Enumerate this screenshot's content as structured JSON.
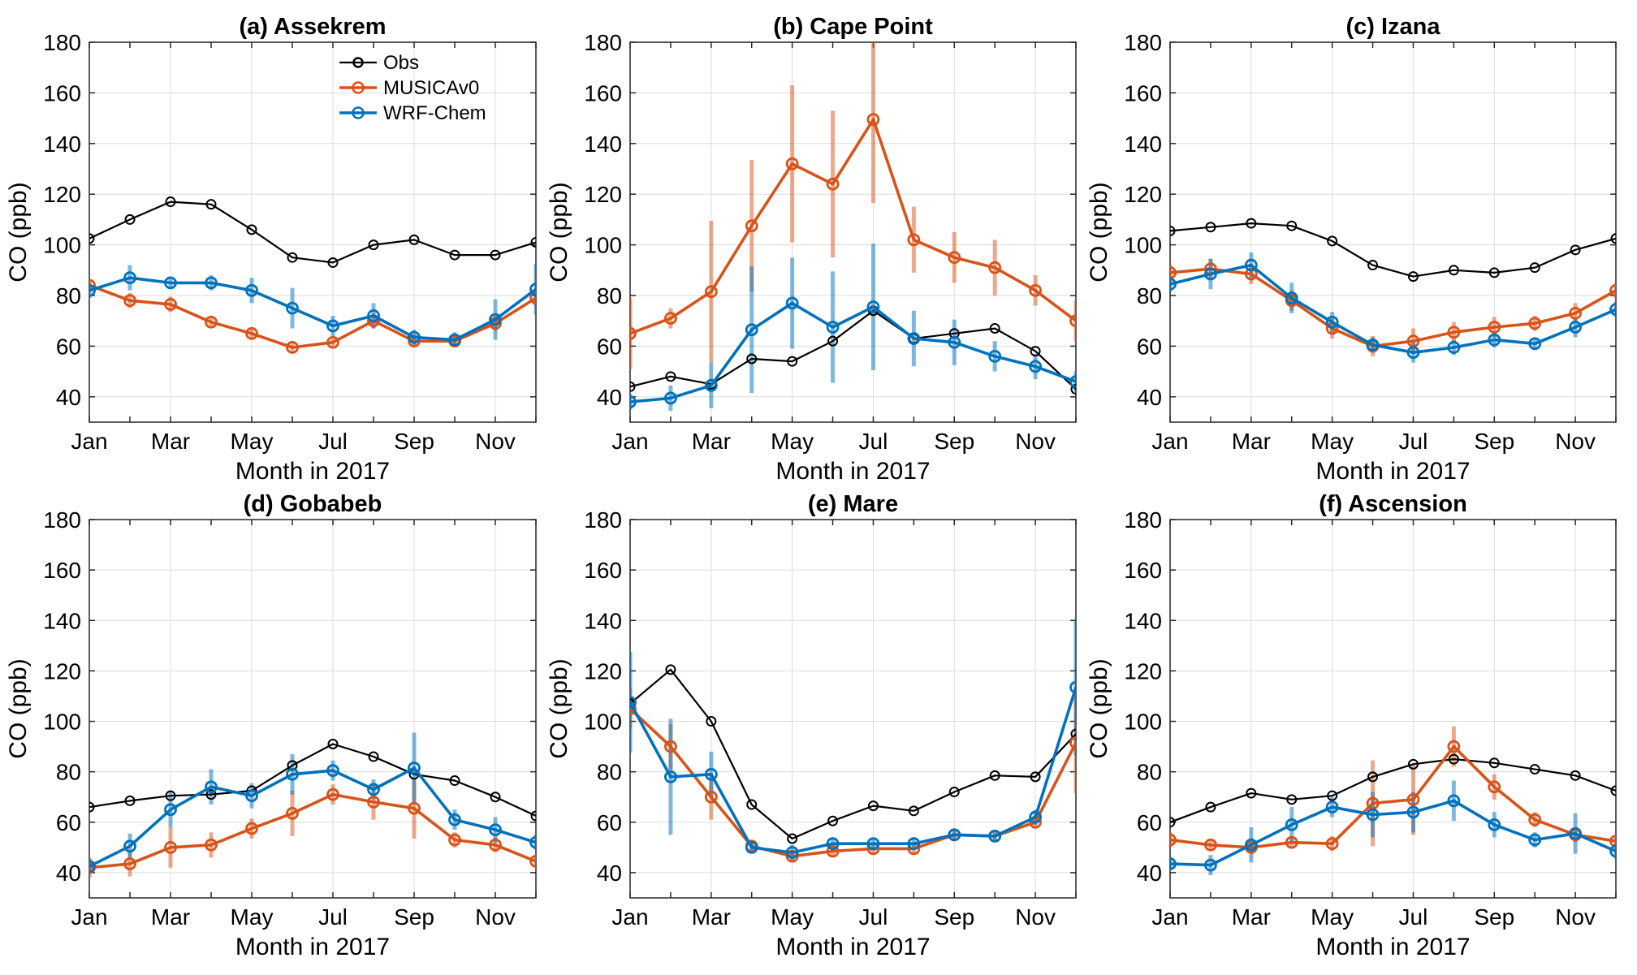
{
  "figure": {
    "xlabel": "Month in 2017",
    "ylabel": "CO (ppb)",
    "legend": [
      "Obs",
      "MUSICAv0",
      "WRF-Chem"
    ],
    "colors": {
      "obs": "#000000",
      "musica": "#d95319",
      "wrf": "#0072bd",
      "grid": "#dcdcdc"
    }
  },
  "chart_data": [
    {
      "type": "line",
      "title": "(a) Assekrem",
      "xlabel": "Month in 2017",
      "ylabel": "CO (ppb)",
      "ylim": [
        30,
        180
      ],
      "yticks": [
        40,
        60,
        80,
        100,
        120,
        140,
        160,
        180
      ],
      "xticks": [
        "Jan",
        "Mar",
        "May",
        "Jul",
        "Sep",
        "Nov"
      ],
      "legend": "top-center",
      "series": [
        {
          "name": "Obs",
          "values": [
            102.5,
            110,
            117,
            116,
            106,
            95,
            93,
            100,
            102,
            96,
            96,
            101
          ],
          "err": [
            0,
            0,
            0,
            0,
            0,
            0,
            0,
            0,
            0,
            0,
            0,
            0
          ]
        },
        {
          "name": "MUSICAv0",
          "values": [
            84,
            78,
            76.5,
            69.5,
            65,
            59.5,
            61.5,
            70,
            62,
            62,
            69,
            79
          ],
          "err": [
            2,
            3,
            3,
            2,
            2,
            2,
            2,
            3,
            2,
            2,
            3,
            3
          ]
        },
        {
          "name": "WRF-Chem",
          "values": [
            82,
            87,
            85,
            85,
            82,
            75,
            68,
            72,
            63.5,
            62.5,
            70.5,
            82.5
          ],
          "err": [
            3,
            5,
            2,
            3,
            5,
            8,
            4,
            5,
            3,
            3,
            8,
            10
          ]
        }
      ]
    },
    {
      "type": "line",
      "title": "(b) Cape Point",
      "xlabel": "Month in 2017",
      "ylabel": "CO (ppb)",
      "ylim": [
        30,
        180
      ],
      "yticks": [
        40,
        60,
        80,
        100,
        120,
        140,
        160,
        180
      ],
      "xticks": [
        "Jan",
        "Mar",
        "May",
        "Jul",
        "Sep",
        "Nov"
      ],
      "series": [
        {
          "name": "Obs",
          "values": [
            44,
            48,
            45,
            55,
            54,
            62,
            74,
            63,
            65,
            67,
            58,
            43
          ],
          "err": [
            0,
            0,
            0,
            0,
            0,
            0,
            0,
            0,
            0,
            0,
            0,
            0
          ]
        },
        {
          "name": "MUSICAv0",
          "values": [
            65,
            71,
            81.5,
            107.5,
            132,
            124,
            149.5,
            102,
            95,
            91,
            82,
            70
          ],
          "err": [
            14,
            4,
            28,
            26,
            31,
            29,
            33,
            13,
            10,
            11,
            6,
            8
          ]
        },
        {
          "name": "WRF-Chem",
          "values": [
            38,
            39.5,
            44.5,
            66.5,
            77,
            67.5,
            75.5,
            63,
            61.5,
            56,
            52,
            46
          ],
          "err": [
            3,
            5,
            9,
            25,
            18,
            22,
            25,
            11,
            9,
            6,
            5,
            4
          ]
        }
      ]
    },
    {
      "type": "line",
      "title": "(c) Izana",
      "xlabel": "Month in 2017",
      "ylabel": "CO (ppb)",
      "ylim": [
        30,
        180
      ],
      "yticks": [
        40,
        60,
        80,
        100,
        120,
        140,
        160,
        180
      ],
      "xticks": [
        "Jan",
        "Mar",
        "May",
        "Jul",
        "Sep",
        "Nov"
      ],
      "series": [
        {
          "name": "Obs",
          "values": [
            105.5,
            107,
            108.5,
            107.5,
            101.5,
            92,
            87.5,
            90,
            89,
            91,
            98,
            102.5
          ],
          "err": [
            0,
            0,
            0,
            0,
            0,
            0,
            0,
            0,
            0,
            0,
            0,
            0
          ]
        },
        {
          "name": "MUSICAv0",
          "values": [
            89,
            90.5,
            88.5,
            78,
            67,
            60,
            62,
            65.5,
            67.5,
            69,
            73,
            82
          ],
          "err": [
            3,
            4,
            4,
            4,
            4,
            4,
            5,
            4,
            4,
            3,
            4,
            3
          ]
        },
        {
          "name": "WRF-Chem",
          "values": [
            84.5,
            88.5,
            92,
            79,
            69.5,
            60.5,
            57.5,
            59.5,
            62.5,
            61,
            67.5,
            74.5
          ],
          "err": [
            3,
            6,
            5,
            6,
            4,
            3,
            4,
            3,
            3,
            2,
            4,
            3
          ]
        }
      ]
    },
    {
      "type": "line",
      "title": "(d) Gobabeb",
      "xlabel": "Month in 2017",
      "ylabel": "CO (ppb)",
      "ylim": [
        30,
        180
      ],
      "yticks": [
        40,
        60,
        80,
        100,
        120,
        140,
        160,
        180
      ],
      "xticks": [
        "Jan",
        "Mar",
        "May",
        "Jul",
        "Sep",
        "Nov"
      ],
      "series": [
        {
          "name": "Obs",
          "values": [
            66,
            68.5,
            70.5,
            71,
            72.5,
            82.5,
            91,
            86,
            79,
            76.5,
            70,
            62.5
          ],
          "err": [
            0,
            0,
            0,
            0,
            0,
            0,
            0,
            0,
            0,
            0,
            0,
            0
          ]
        },
        {
          "name": "MUSICAv0",
          "values": [
            42,
            43.5,
            50,
            51,
            57.5,
            63.5,
            71,
            68,
            65.5,
            53,
            51,
            44.5
          ],
          "err": [
            4,
            5,
            8,
            5,
            4,
            9,
            4,
            7,
            12,
            3,
            3,
            2
          ]
        },
        {
          "name": "WRF-Chem",
          "values": [
            42.5,
            50.5,
            65,
            74,
            70.5,
            79,
            80.5,
            73,
            81.5,
            61,
            57,
            52
          ],
          "err": [
            3,
            5,
            7,
            7,
            5,
            8,
            4,
            4,
            14,
            4,
            5,
            3
          ]
        }
      ]
    },
    {
      "type": "line",
      "title": "(e) Mare",
      "xlabel": "Month in 2017",
      "ylabel": "CO (ppb)",
      "ylim": [
        30,
        180
      ],
      "yticks": [
        40,
        60,
        80,
        100,
        120,
        140,
        160,
        180
      ],
      "xticks": [
        "Jan",
        "Mar",
        "May",
        "Jul",
        "Sep",
        "Nov"
      ],
      "series": [
        {
          "name": "Obs",
          "values": [
            107,
            120.5,
            100,
            67,
            53.5,
            60.5,
            66.5,
            64.5,
            72,
            78.5,
            78,
            95
          ],
          "err": [
            0,
            0,
            0,
            0,
            0,
            0,
            0,
            0,
            0,
            0,
            0,
            0
          ]
        },
        {
          "name": "MUSICAv0",
          "values": [
            105,
            90,
            70,
            50.5,
            46.5,
            48.5,
            49.5,
            49.5,
            55,
            54.5,
            60,
            91.5
          ],
          "err": [
            8,
            9,
            9,
            2,
            2,
            2,
            2,
            2,
            2,
            2,
            2,
            20
          ]
        },
        {
          "name": "WRF-Chem",
          "values": [
            107.5,
            78,
            79,
            50,
            48,
            51.5,
            51.5,
            51.5,
            55,
            54.5,
            62,
            113.5
          ],
          "err": [
            20,
            23,
            9,
            2,
            3,
            2,
            2,
            2,
            2,
            2,
            3,
            27
          ]
        }
      ]
    },
    {
      "type": "line",
      "title": "(f) Ascension",
      "xlabel": "Month in 2017",
      "ylabel": "CO (ppb)",
      "ylim": [
        30,
        180
      ],
      "yticks": [
        40,
        60,
        80,
        100,
        120,
        140,
        160,
        180
      ],
      "xticks": [
        "Jan",
        "Mar",
        "May",
        "Jul",
        "Sep",
        "Nov"
      ],
      "series": [
        {
          "name": "Obs",
          "values": [
            60,
            66,
            71.5,
            69,
            70.5,
            78,
            83,
            85,
            83.5,
            81,
            78.5,
            72.5
          ],
          "err": [
            0,
            0,
            0,
            0,
            0,
            0,
            0,
            0,
            0,
            0,
            0,
            0
          ]
        },
        {
          "name": "MUSICAv0",
          "values": [
            53,
            51,
            50,
            52,
            51.5,
            67.5,
            69,
            90,
            74,
            61,
            55,
            52.5
          ],
          "err": [
            3,
            2,
            2,
            2,
            3,
            17,
            14,
            8,
            5,
            3,
            3,
            2
          ]
        },
        {
          "name": "WRF-Chem",
          "values": [
            43.5,
            43,
            51,
            59,
            66,
            63,
            64,
            68.5,
            59,
            53,
            55.5,
            48.5
          ],
          "err": [
            2,
            4,
            7,
            7,
            4,
            9,
            8,
            8,
            5,
            3,
            8,
            3
          ]
        }
      ]
    }
  ]
}
